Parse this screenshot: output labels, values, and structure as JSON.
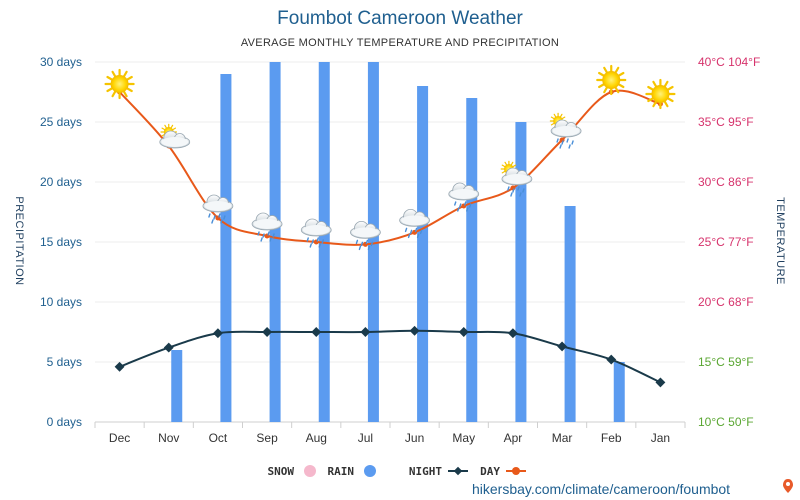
{
  "chart_data": {
    "type": "bar",
    "title": "Foumbot Cameroon Weather",
    "subtitle": "AVERAGE MONTHLY TEMPERATURE AND PRECIPITATION",
    "categories": [
      "Dec",
      "Nov",
      "Oct",
      "Sep",
      "Aug",
      "Jul",
      "Jun",
      "May",
      "Apr",
      "Mar",
      "Feb",
      "Jan"
    ],
    "y_left": {
      "label": "PRECIPITATION",
      "ticks": [
        "0 days",
        "5 days",
        "10 days",
        "15 days",
        "20 days",
        "25 days",
        "30 days"
      ],
      "range": [
        0,
        30
      ]
    },
    "y_right": {
      "label": "TEMPERATURE",
      "ticks": [
        "10°C 50°F",
        "15°C 59°F",
        "20°C 68°F",
        "25°C 77°F",
        "30°C 86°F",
        "35°C 95°F",
        "40°C 104°F"
      ],
      "range": [
        10,
        40
      ]
    },
    "series": [
      {
        "name": "RAIN",
        "type": "bar",
        "unit": "days",
        "color": "#5b9bf0",
        "values": [
          0,
          6,
          29,
          30,
          30,
          30,
          28,
          27,
          25,
          18,
          5,
          0
        ]
      },
      {
        "name": "DAY",
        "type": "line",
        "unit": "°C",
        "color": "#e8591a",
        "values": [
          37.5,
          33,
          27,
          25.5,
          25,
          24.8,
          25.8,
          28,
          29.5,
          33.5,
          37.5,
          36.5
        ]
      },
      {
        "name": "NIGHT",
        "type": "line",
        "unit": "°C",
        "color": "#1a3a4a",
        "values": [
          14.6,
          16.2,
          17.4,
          17.5,
          17.5,
          17.5,
          17.6,
          17.5,
          17.4,
          16.3,
          15.2,
          13.3
        ]
      },
      {
        "name": "SNOW",
        "type": "bar",
        "unit": "days",
        "color": "#f5b8cc",
        "values": [
          0,
          0,
          0,
          0,
          0,
          0,
          0,
          0,
          0,
          0,
          0,
          0
        ]
      }
    ],
    "weather_icons": [
      "sun-icon",
      "sun-cloud-icon",
      "rain-cloud-icon",
      "rain-cloud-icon",
      "rain-cloud-icon",
      "rain-cloud-icon",
      "rain-cloud-icon",
      "rain-cloud-icon",
      "sun-rain-cloud-icon",
      "sun-rain-cloud-icon",
      "sun-icon",
      "sun-icon"
    ],
    "legend": {
      "placement": "bottom-center",
      "items": [
        {
          "name": "DAY",
          "color": "#e8591a",
          "marker": "circle"
        },
        {
          "name": "NIGHT",
          "color": "#1a3a4a",
          "marker": "diamond"
        },
        {
          "name": "RAIN",
          "color": "#5b9bf0",
          "marker": "circle"
        },
        {
          "name": "SNOW",
          "color": "#f5b8cc",
          "marker": "circle"
        }
      ]
    },
    "grid": true,
    "mirrored": true
  },
  "source": "hikersbay.com/climate/cameroon/foumbot"
}
